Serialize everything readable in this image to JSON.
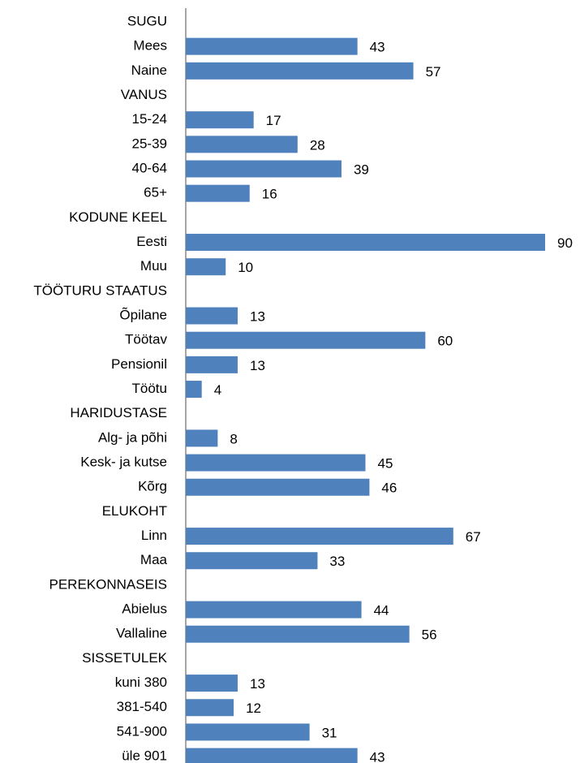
{
  "chart_data": {
    "type": "bar",
    "orientation": "horizontal",
    "color": "#4f81bd",
    "categories": [
      "SUGU",
      "Mees",
      "Naine",
      "VANUS",
      "15-24",
      "25-39",
      "40-64",
      "65+",
      "KODUNE KEEL",
      "Eesti",
      "Muu",
      "TÖÖTURU STAATUS",
      "Õpilane",
      "Töötav",
      "Pensionil",
      "Töötu",
      "HARIDUSTASE",
      "Alg- ja põhi",
      "Kesk- ja kutse",
      "Kõrg",
      "ELUKOHT",
      "Linn",
      "Maa",
      "PEREKONNASEIS",
      "Abielus",
      "Vallaline",
      "SISSETULEK",
      "kuni 380",
      "381-540",
      "541-900",
      "üle 901"
    ],
    "values": [
      null,
      43,
      57,
      null,
      17,
      28,
      39,
      16,
      null,
      90,
      10,
      null,
      13,
      60,
      13,
      4,
      null,
      8,
      45,
      46,
      null,
      67,
      33,
      null,
      44,
      56,
      null,
      13,
      12,
      31,
      43
    ]
  }
}
